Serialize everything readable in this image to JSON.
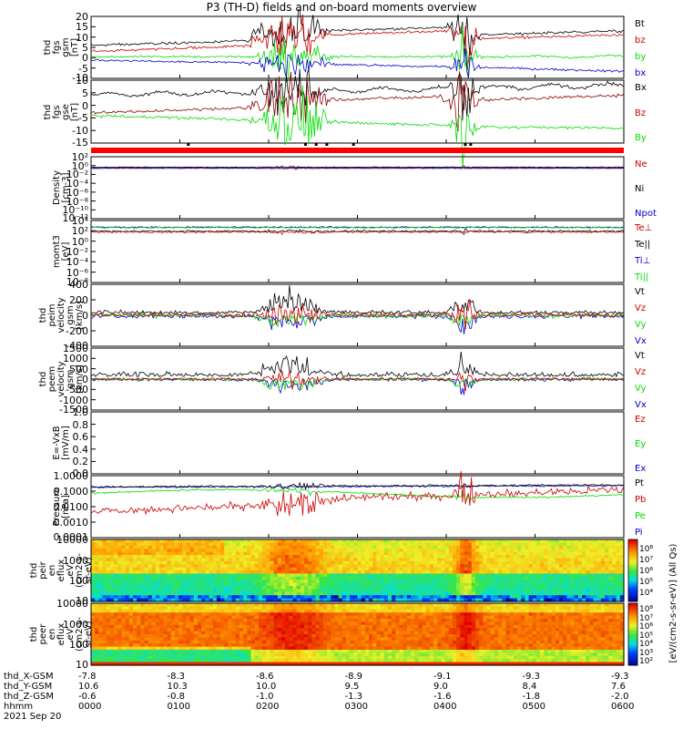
{
  "title": "P3 (TH-D) fields and on-board moments overview",
  "colors": {
    "black": "#000000",
    "red": "#cc0000",
    "green": "#00dd00",
    "blue": "#0000cc",
    "darkred": "#8b0000"
  },
  "chart_data": [
    {
      "type": "line",
      "ylabel": "thd\nfgs\ngsm\n[nT]",
      "ylim": [
        -10,
        20
      ],
      "yticks": [
        "20",
        "15",
        "10",
        "5",
        "0",
        "-5",
        "-10"
      ],
      "series": [
        {
          "name": "Bt",
          "color": "#000000"
        },
        {
          "name": "bz",
          "color": "#cc0000"
        },
        {
          "name": "by",
          "color": "#00dd00"
        },
        {
          "name": "bx",
          "color": "#0000cc"
        }
      ]
    },
    {
      "type": "line",
      "ylabel": "thd\nfgs\ngse\n[nT]",
      "ylim": [
        -15,
        10
      ],
      "yticks": [
        "10",
        "5",
        "0",
        "-5",
        "-10",
        "-15"
      ],
      "series": [
        {
          "name": "Bx",
          "color": "#000000"
        },
        {
          "name": "Bz",
          "color": "#cc0000"
        },
        {
          "name": "By",
          "color": "#00dd00"
        }
      ]
    },
    {
      "type": "line",
      "ylabel": "Density\n[cm-3]",
      "scale": "log",
      "yticks": [
        "10²",
        "10⁰",
        "10⁻²",
        "10⁻⁴",
        "10⁻⁶",
        "10⁻⁸",
        "10⁻¹⁰",
        "10⁻¹²"
      ],
      "series": [
        {
          "name": "Ne",
          "color": "#cc0000"
        },
        {
          "name": "Ni",
          "color": "#000000"
        },
        {
          "name": "Npot",
          "color": "#0000cc"
        }
      ]
    },
    {
      "type": "line",
      "ylabel": "momt3\n[eV]",
      "scale": "log",
      "yticks": [
        "10⁴",
        "10²",
        "10⁰",
        "10⁻²",
        "10⁻⁴",
        "10⁻⁶",
        "10⁻⁸"
      ],
      "series": [
        {
          "name": "Te⊥",
          "color": "#cc0000"
        },
        {
          "name": "Te||",
          "color": "#000000"
        },
        {
          "name": "Ti⊥",
          "color": "#0000cc"
        },
        {
          "name": "Ti||",
          "color": "#00dd00"
        }
      ]
    },
    {
      "type": "line",
      "ylabel": "thd\npeim\nvelocity\ngsm\n[km/s]",
      "ylim": [
        -400,
        400
      ],
      "yticks": [
        "400",
        "200",
        "0",
        "-200",
        "-400"
      ],
      "series": [
        {
          "name": "Vt",
          "color": "#000000"
        },
        {
          "name": "Vz",
          "color": "#cc0000"
        },
        {
          "name": "Vy",
          "color": "#00dd00"
        },
        {
          "name": "Vx",
          "color": "#0000cc"
        }
      ]
    },
    {
      "type": "line",
      "ylabel": "thd\npeem\nvelocity\ngsm\n[km/s]",
      "ylim": [
        -1500,
        1500
      ],
      "yticks": [
        "1500",
        "1000",
        "500",
        "0",
        "-500",
        "-1000",
        "-1500"
      ],
      "series": [
        {
          "name": "Vt",
          "color": "#000000"
        },
        {
          "name": "Vz",
          "color": "#cc0000"
        },
        {
          "name": "Vy",
          "color": "#00dd00"
        },
        {
          "name": "Vx",
          "color": "#0000cc"
        }
      ]
    },
    {
      "type": "line",
      "ylabel": "E=-VxB\n[mV/m]",
      "ylim": [
        0,
        1
      ],
      "yticks": [
        "1.0",
        "0.8",
        "0.6",
        "0.4",
        "0.2",
        "0.0"
      ],
      "series": [
        {
          "name": "Ez",
          "color": "#cc0000"
        },
        {
          "name": "Ey",
          "color": "#00dd00"
        },
        {
          "name": "Ex",
          "color": "#0000cc"
        }
      ]
    },
    {
      "type": "line",
      "ylabel": "Pressure\n[nPa]",
      "scale": "log",
      "yticks": [
        "1.0000",
        "0.1000",
        "0.0100",
        "0.0010",
        "0.0001"
      ],
      "series": [
        {
          "name": "Pt",
          "color": "#000000"
        },
        {
          "name": "Pb",
          "color": "#cc0000"
        },
        {
          "name": "Pe",
          "color": "#00dd00"
        },
        {
          "name": "Pi",
          "color": "#0000cc"
        }
      ]
    },
    {
      "type": "heatmap",
      "ylabel": "thd\npeir\nen\neflux\neV\n(cm2-s-\nsr-eV)",
      "yticks": [
        "10000",
        "1000",
        "100",
        "10"
      ]
    },
    {
      "type": "heatmap",
      "ylabel": "thd\npeer\nen\neflux\neV\n(cm2-s-\nsr-eV)",
      "yticks": [
        "10000",
        "1000",
        "100",
        "10"
      ]
    }
  ],
  "colorbar": {
    "label": "[eV/(cm2-s-sr-eV)] (All Qs)",
    "ticks_ion": [
      "10⁸",
      "10⁷",
      "10⁶",
      "10⁵",
      "10⁴"
    ],
    "ticks_ele": [
      "10⁸",
      "10⁷",
      "10⁶",
      "10⁵",
      "10⁴",
      "10³",
      "10²"
    ]
  },
  "xaxis": {
    "rows": [
      {
        "name": "thd_X-GSM",
        "values": [
          "-7.8",
          "-8.3",
          "-8.6",
          "-8.9",
          "-9.1",
          "-9.3",
          "-9.3"
        ]
      },
      {
        "name": "thd_Y-GSM",
        "values": [
          "10.6",
          "10.3",
          "10.0",
          "9.5",
          "9.0",
          "8.4",
          "7.6"
        ]
      },
      {
        "name": "thd_Z-GSM",
        "values": [
          "-0.6",
          "-0.8",
          "-1.0",
          "-1.3",
          "-1.6",
          "-1.8",
          "-2.0"
        ]
      },
      {
        "name": "hhmm",
        "values": [
          "0000",
          "0100",
          "0200",
          "0300",
          "0400",
          "0500",
          "0600"
        ]
      }
    ],
    "date": "2021 Sep 20"
  }
}
